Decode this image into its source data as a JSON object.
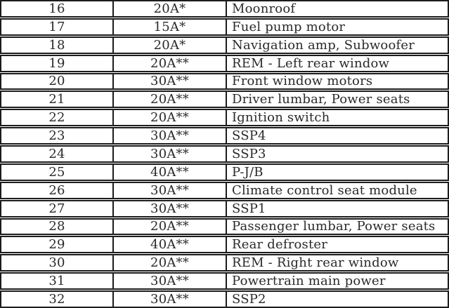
{
  "table": {
    "name": "fuse-specification-table",
    "columns": [
      "fuse-number",
      "amp-rating",
      "description"
    ],
    "rows": [
      [
        "16",
        "20A*",
        "Moonroof"
      ],
      [
        "17",
        "15A*",
        "Fuel pump motor"
      ],
      [
        "18",
        "20A*",
        "Navigation amp, Subwoofer"
      ],
      [
        "19",
        "20A**",
        "REM - Left rear window"
      ],
      [
        "20",
        "30A**",
        "Front window motors"
      ],
      [
        "21",
        "20A**",
        "Driver lumbar, Power seats"
      ],
      [
        "22",
        "20A**",
        "Ignition switch"
      ],
      [
        "23",
        "30A**",
        "SSP4"
      ],
      [
        "24",
        "30A**",
        "SSP3"
      ],
      [
        "25",
        "40A**",
        "P-J/B"
      ],
      [
        "26",
        "30A**",
        "Climate control seat module"
      ],
      [
        "27",
        "30A**",
        "SSP1"
      ],
      [
        "28",
        "20A**",
        "Passenger lumbar, Power seats"
      ],
      [
        "29",
        "40A**",
        "Rear defroster"
      ],
      [
        "30",
        "20A**",
        "REM - Right rear window"
      ],
      [
        "31",
        "30A**",
        "Powertrain main power"
      ],
      [
        "32",
        "30A**",
        "SSP2"
      ]
    ]
  },
  "colors": {
    "border": "#1c1c1c",
    "text": "#2a2a2a",
    "background": "#ffffff"
  }
}
